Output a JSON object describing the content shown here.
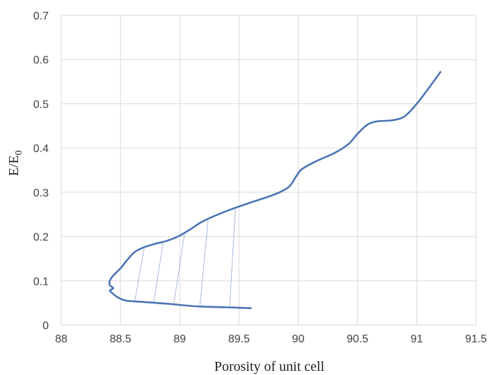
{
  "chart_data": {
    "type": "line",
    "title": "",
    "xlabel": "Porosity of unit cell",
    "ylabel_main": "E/E",
    "ylabel_sub": "0",
    "xlim": [
      88,
      91.5
    ],
    "ylim": [
      0,
      0.7
    ],
    "grid": true,
    "legend": "none",
    "x_ticks": [
      88,
      88.5,
      89,
      89.5,
      90,
      90.5,
      91,
      91.5
    ],
    "x_tick_labels": [
      "88",
      "88.5",
      "89",
      "89.5",
      "90",
      "90.5",
      "91",
      "91.5"
    ],
    "y_ticks": [
      0,
      0.1,
      0.2,
      0.3,
      0.4,
      0.5,
      0.6,
      0.7
    ],
    "y_tick_labels": [
      "0",
      "0.1",
      "0.2",
      "0.3",
      "0.4",
      "0.5",
      "0.6",
      "0.7"
    ],
    "series": [
      {
        "color": "#4a74b4",
        "points": [
          [
            89.6,
            0.038
          ],
          [
            89.4,
            0.04
          ],
          [
            89.15,
            0.042
          ],
          [
            88.9,
            0.048
          ],
          [
            88.7,
            0.052
          ],
          [
            88.55,
            0.055
          ],
          [
            88.48,
            0.062
          ],
          [
            88.44,
            0.07
          ],
          [
            88.41,
            0.078
          ],
          [
            88.44,
            0.083
          ],
          [
            88.41,
            0.09
          ],
          [
            88.41,
            0.1
          ],
          [
            88.44,
            0.112
          ],
          [
            88.5,
            0.128
          ],
          [
            88.56,
            0.148
          ],
          [
            88.62,
            0.165
          ],
          [
            88.7,
            0.176
          ],
          [
            88.8,
            0.184
          ],
          [
            88.9,
            0.191
          ],
          [
            89.0,
            0.202
          ],
          [
            89.1,
            0.218
          ],
          [
            89.2,
            0.235
          ],
          [
            89.4,
            0.258
          ],
          [
            89.6,
            0.277
          ],
          [
            89.8,
            0.295
          ],
          [
            89.92,
            0.312
          ],
          [
            89.98,
            0.335
          ],
          [
            90.03,
            0.352
          ],
          [
            90.15,
            0.37
          ],
          [
            90.3,
            0.388
          ],
          [
            90.42,
            0.408
          ],
          [
            90.5,
            0.432
          ],
          [
            90.58,
            0.452
          ],
          [
            90.66,
            0.46
          ],
          [
            90.8,
            0.463
          ],
          [
            90.9,
            0.472
          ],
          [
            91.0,
            0.5
          ],
          [
            91.1,
            0.535
          ],
          [
            91.2,
            0.572
          ]
        ]
      }
    ],
    "hatch_segments": [
      [
        [
          88.62,
          0.054
        ],
        [
          88.7,
          0.173
        ]
      ],
      [
        [
          88.78,
          0.052
        ],
        [
          88.86,
          0.186
        ]
      ],
      [
        [
          88.95,
          0.047
        ],
        [
          89.04,
          0.206
        ]
      ],
      [
        [
          89.17,
          0.042
        ],
        [
          89.24,
          0.238
        ]
      ],
      [
        [
          89.42,
          0.04
        ],
        [
          89.47,
          0.262
        ]
      ]
    ]
  }
}
